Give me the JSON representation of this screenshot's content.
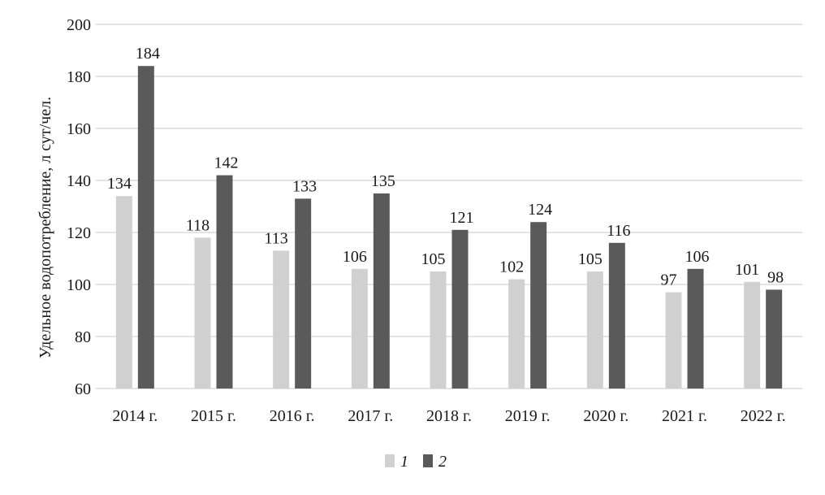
{
  "chart_data": {
    "type": "bar",
    "title": "",
    "xlabel": "",
    "ylabel": "Удельное водопотребление, л сут/чел.",
    "ylim": [
      60,
      200
    ],
    "yticks": [
      60,
      80,
      100,
      120,
      140,
      160,
      180,
      200
    ],
    "grid": true,
    "legend_position": "bottom",
    "categories": [
      "2014 г.",
      "2015 г.",
      "2016 г.",
      "2017 г.",
      "2018 г.",
      "2019 г.",
      "2020 г.",
      "2021 г.",
      "2022 г."
    ],
    "series": [
      {
        "name": "1",
        "color": "#d0d0d0",
        "values": [
          134,
          118,
          113,
          106,
          105,
          102,
          105,
          97,
          101
        ]
      },
      {
        "name": "2",
        "color": "#5a5a5a",
        "values": [
          184,
          142,
          133,
          135,
          121,
          124,
          116,
          106,
          98
        ]
      }
    ]
  }
}
